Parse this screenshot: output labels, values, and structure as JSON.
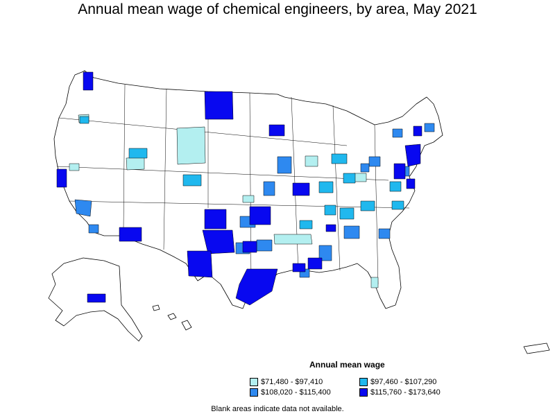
{
  "title": "Annual mean wage of chemical engineers, by area, May 2021",
  "legend": {
    "title": "Annual mean wage",
    "items": [
      {
        "label": "$71,480 - $97,410",
        "color": "#b3eff0"
      },
      {
        "label": "$97,460 - $107,290",
        "color": "#20b8ee"
      },
      {
        "label": "$108,020 - $115,400",
        "color": "#2e89f0"
      },
      {
        "label": "$115,760 - $173,640",
        "color": "#0808f0"
      }
    ]
  },
  "footnote": "Blank areas indicate data not available.",
  "colors": {
    "tier1": "#b3eff0",
    "tier2": "#20b8ee",
    "tier3": "#2e89f0",
    "tier4": "#0808f0",
    "border": "#000000",
    "background": "#ffffff"
  }
}
